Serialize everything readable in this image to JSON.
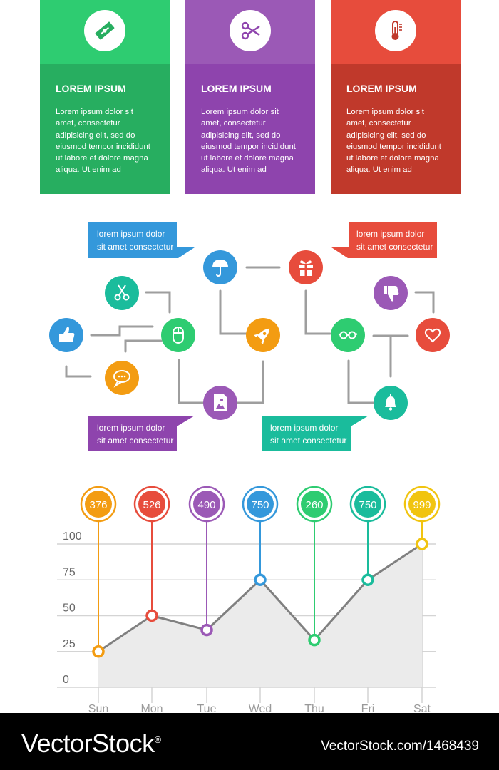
{
  "cards": [
    {
      "title": "LOREM IPSUM",
      "text": "Lorem ipsum dolor sit amet, consectetur adipisicing elit, sed do eiusmod tempor incididunt ut labore et dolore magna aliqua. Ut enim ad",
      "top_color": "#2ecc71",
      "body_color": "#27ae60",
      "icon": "razor-blade-icon"
    },
    {
      "title": "LOREM IPSUM",
      "text": "Lorem ipsum dolor sit amet, consectetur adipisicing elit, sed do eiusmod tempor incididunt ut labore et dolore magna aliqua. Ut enim ad",
      "top_color": "#9b59b6",
      "body_color": "#8e44ad",
      "icon": "scissors-icon"
    },
    {
      "title": "LOREM IPSUM",
      "text": "Lorem ipsum dolor sit amet, consectetur adipisicing elit, sed do eiusmod tempor incididunt ut labore et dolore magna aliqua. Ut enim ad",
      "top_color": "#e74c3c",
      "body_color": "#c0392b",
      "icon": "thermometer-icon"
    }
  ],
  "callouts": [
    {
      "line1": "lorem ipsum dolor",
      "line2": "sit amet consectetur",
      "color": "#3498db"
    },
    {
      "line1": "lorem ipsum dolor",
      "line2": "sit amet consectetur",
      "color": "#e74c3c"
    },
    {
      "line1": "lorem ipsum dolor",
      "line2": "sit amet consectetur",
      "color": "#8e44ad"
    },
    {
      "line1": "lorem ipsum dolor",
      "line2": "sit amet consectetur",
      "color": "#1abc9c"
    }
  ],
  "flow_nodes": [
    {
      "icon": "thumbs-up-icon",
      "color": "#3498db"
    },
    {
      "icon": "scissors-icon",
      "color": "#1abc9c"
    },
    {
      "icon": "chat-bubble-icon",
      "color": "#f39c12"
    },
    {
      "icon": "mouse-icon",
      "color": "#2ecc71"
    },
    {
      "icon": "umbrella-icon",
      "color": "#3498db"
    },
    {
      "icon": "rocket-icon",
      "color": "#f39c12"
    },
    {
      "icon": "image-file-icon",
      "color": "#9b59b6"
    },
    {
      "icon": "gift-icon",
      "color": "#e74c3c"
    },
    {
      "icon": "glasses-icon",
      "color": "#2ecc71"
    },
    {
      "icon": "thumbs-down-icon",
      "color": "#9b59b6"
    },
    {
      "icon": "heart-icon",
      "color": "#e74c3c"
    },
    {
      "icon": "bell-icon",
      "color": "#1abc9c"
    }
  ],
  "chart_data": {
    "type": "line",
    "categories": [
      "Sun",
      "Mon",
      "Tue",
      "Wed",
      "Thu",
      "Fri",
      "Sat"
    ],
    "values": [
      25,
      50,
      40,
      75,
      33,
      75,
      100
    ],
    "badges": [
      "376",
      "526",
      "490",
      "750",
      "260",
      "750",
      "999"
    ],
    "colors": [
      "#f39c12",
      "#e74c3c",
      "#9b59b6",
      "#3498db",
      "#2ecc71",
      "#1abc9c",
      "#f1c40f"
    ],
    "yticks": [
      "0",
      "25",
      "50",
      "75",
      "100"
    ],
    "ylim": [
      0,
      100
    ]
  },
  "footer": {
    "brand": "VectorStock",
    "mark": "®",
    "stock_id": "VectorStock.com/1468439"
  }
}
